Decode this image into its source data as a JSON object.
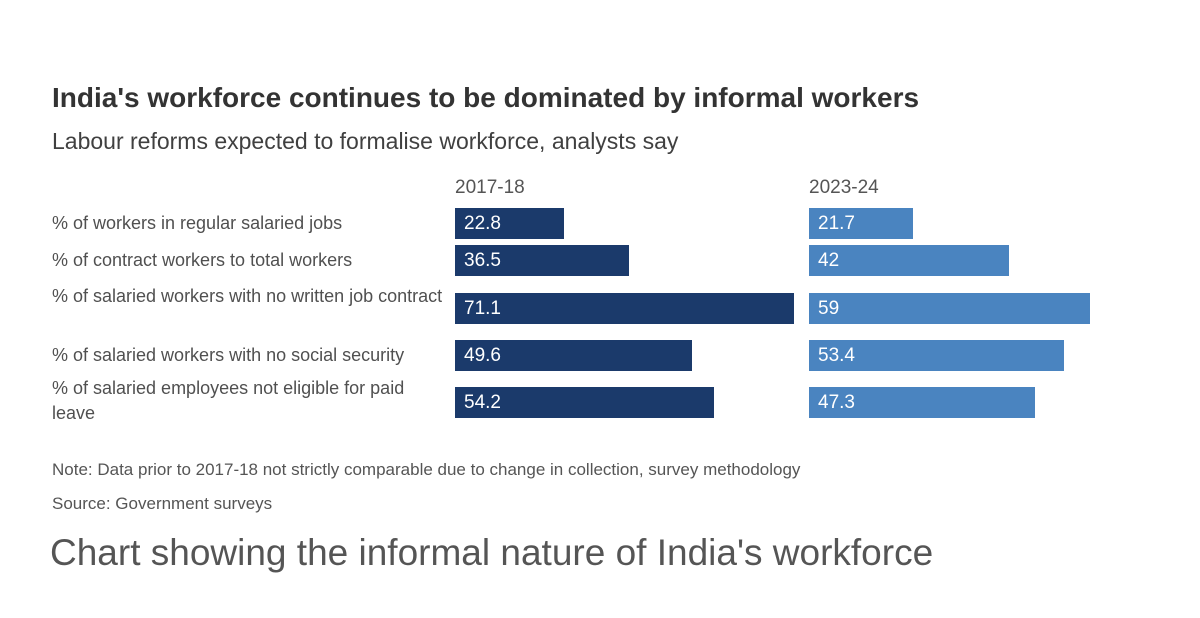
{
  "chart_data": {
    "type": "bar",
    "title": "India's workforce continues to be dominated by informal workers",
    "subtitle": "Labour reforms expected to formalise workforce, analysts say",
    "categories": [
      "% of workers in regular salaried jobs",
      "% of contract workers to total workers",
      "% of salaried workers with no written job contract",
      "% of salaried workers with no social security",
      "% of salaried employees not eligible for paid leave"
    ],
    "series": [
      {
        "name": "2017-18",
        "color": "#1b3a6b",
        "values": [
          22.8,
          36.5,
          71.1,
          49.6,
          54.2
        ]
      },
      {
        "name": "2023-24",
        "color": "#4a84c0",
        "values": [
          21.7,
          42,
          59,
          53.4,
          47.3
        ]
      }
    ],
    "note": "Note: Data prior to 2017-18 not strictly comparable due to change in collection, survey methodology",
    "source": "Source: Government surveys"
  },
  "caption": "Chart showing the informal nature of India's workforce"
}
